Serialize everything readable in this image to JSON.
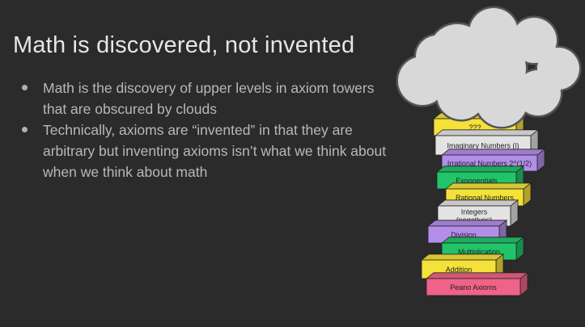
{
  "slide": {
    "title": "Math is discovered, not invented",
    "bullets": [
      "Math is the discovery of upper levels in axiom towers that are obscured by clouds",
      "Technically, axioms are “invented” in that they are arbitrary but inventing axioms isn’t what we think about when we think about math"
    ]
  },
  "tower": {
    "blocks": [
      {
        "label": "???",
        "color": "#f4e13a"
      },
      {
        "label": "Imaginary Numbers (i)",
        "color": "#e3e3e3"
      },
      {
        "label": "Irrational Numbers 2^(1/2)",
        "color": "#b38ee8"
      },
      {
        "label": "Exponentials",
        "color": "#22c46a"
      },
      {
        "label": "Rational Numbers",
        "color": "#f4e13a"
      },
      {
        "label": "Integers",
        "label2": "(negatives)",
        "color": "#e3e3e3"
      },
      {
        "label": "Division",
        "color": "#b38ee8"
      },
      {
        "label": "Multiplication",
        "color": "#22c46a"
      },
      {
        "label": "Addition",
        "color": "#f4e13a"
      },
      {
        "label": "Peano Axioms",
        "color": "#ee6387"
      }
    ]
  }
}
